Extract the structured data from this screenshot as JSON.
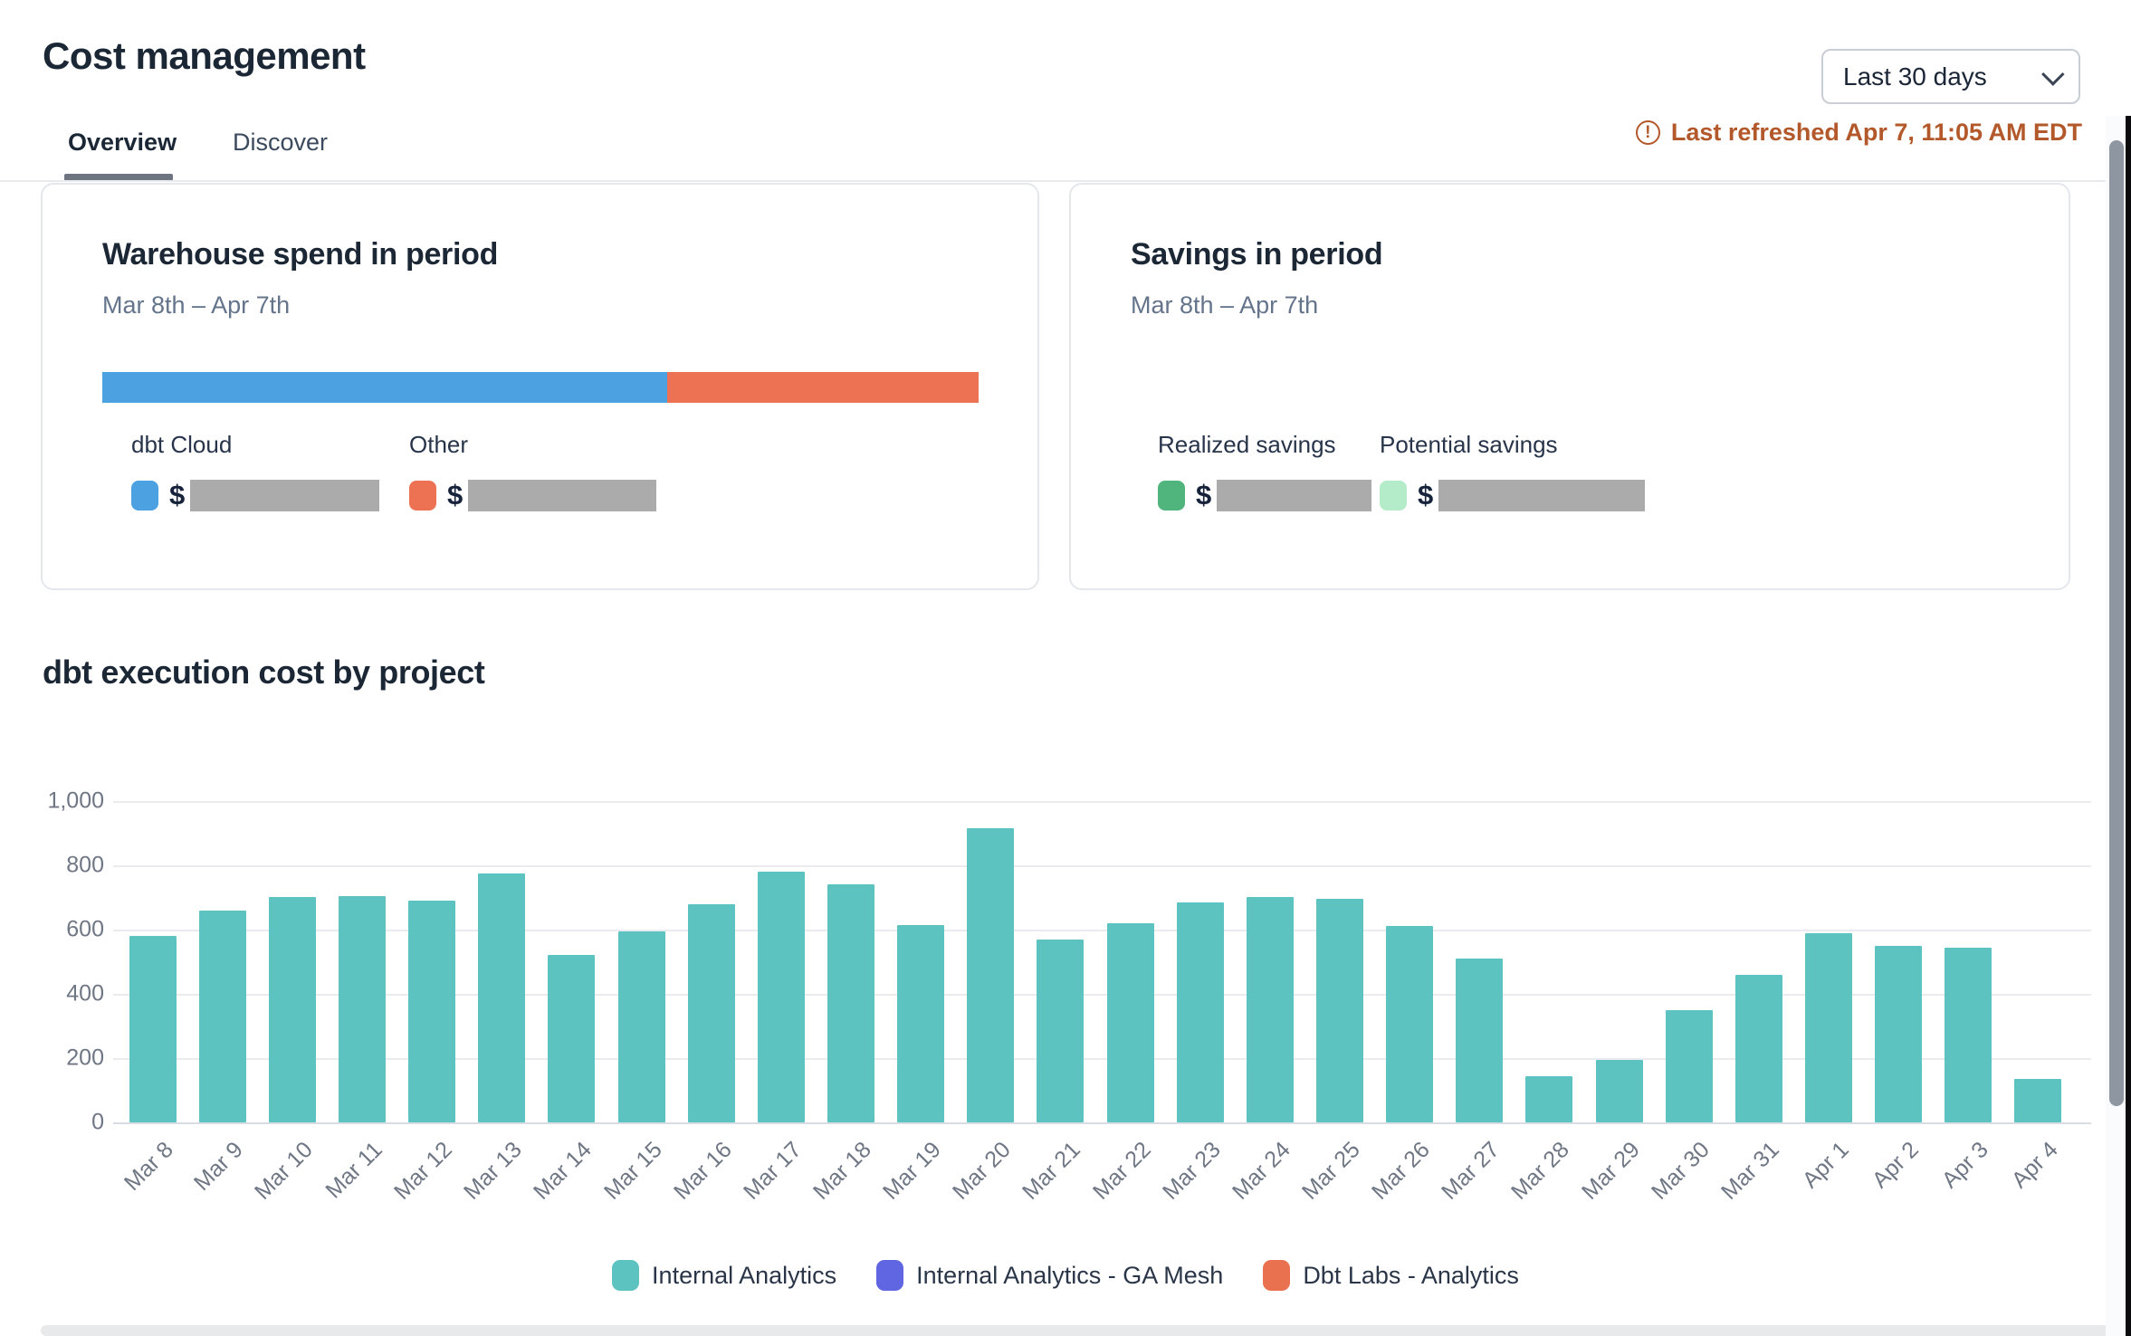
{
  "header": {
    "title": "Cost management",
    "tabs": [
      {
        "label": "Overview",
        "active": true
      },
      {
        "label": "Discover",
        "active": false
      }
    ],
    "date_range_selector": {
      "value": "Last 30 days",
      "icon": "chevron-down-icon"
    },
    "last_refreshed": {
      "icon": "alert-circle-icon",
      "text": "Last refreshed Apr 7, 11:05 AM EDT",
      "color": "#B3582A"
    }
  },
  "cards": {
    "warehouse_spend": {
      "title": "Warehouse spend in period",
      "subtitle": "Mar 8th – Apr 7th",
      "stacked_bar": {
        "segments": [
          {
            "name": "dbt Cloud",
            "color": "#4CA1E0",
            "percent": 64.5
          },
          {
            "name": "Other",
            "color": "#EC7253",
            "percent": 35.5
          }
        ]
      },
      "legend": [
        {
          "label": "dbt Cloud",
          "swatch_color": "#4CA1E0",
          "value_prefix": "$",
          "value_redacted": true
        },
        {
          "label": "Other",
          "swatch_color": "#EC7253",
          "value_prefix": "$",
          "value_redacted": true
        }
      ]
    },
    "savings": {
      "title": "Savings in period",
      "subtitle": "Mar 8th – Apr 7th",
      "legend": [
        {
          "label": "Realized savings",
          "swatch_color": "#50B47D",
          "value_prefix": "$",
          "value_redacted": true
        },
        {
          "label": "Potential savings",
          "swatch_color": "#B4EBC9",
          "value_prefix": "$",
          "value_redacted": true
        }
      ]
    }
  },
  "chart_section": {
    "title": "dbt execution cost by project"
  },
  "chart_data": {
    "type": "bar",
    "title": "dbt execution cost by project",
    "categories": [
      "Mar 8",
      "Mar 9",
      "Mar 10",
      "Mar 11",
      "Mar 12",
      "Mar 13",
      "Mar 14",
      "Mar 15",
      "Mar 16",
      "Mar 17",
      "Mar 18",
      "Mar 19",
      "Mar 20",
      "Mar 21",
      "Mar 22",
      "Mar 23",
      "Mar 24",
      "Mar 25",
      "Mar 26",
      "Mar 27",
      "Mar 28",
      "Mar 29",
      "Mar 30",
      "Mar 31",
      "Apr 1",
      "Apr 2",
      "Apr 3",
      "Apr 4"
    ],
    "series": [
      {
        "name": "Internal Analytics",
        "color": "#5CC3C1",
        "values": [
          580,
          660,
          700,
          705,
          690,
          775,
          520,
          595,
          680,
          780,
          740,
          615,
          915,
          570,
          620,
          685,
          700,
          695,
          610,
          510,
          145,
          195,
          350,
          460,
          590,
          550,
          545,
          135
        ]
      },
      {
        "name": "Internal Analytics - GA Mesh",
        "color": "#6065E2",
        "values": []
      },
      {
        "name": "Dbt Labs - Analytics",
        "color": "#EA7150",
        "values": []
      }
    ],
    "xlabel": "",
    "ylabel": "",
    "ylim": [
      0,
      1000
    ],
    "yticks": [
      "0",
      "200",
      "400",
      "600",
      "800",
      "1,000"
    ],
    "grid": true,
    "legend_position": "bottom",
    "legend": [
      {
        "label": "Internal Analytics",
        "color": "#5CC3C1"
      },
      {
        "label": "Internal Analytics - GA Mesh",
        "color": "#6065E2"
      },
      {
        "label": "Dbt Labs - Analytics",
        "color": "#EA7150"
      }
    ]
  }
}
